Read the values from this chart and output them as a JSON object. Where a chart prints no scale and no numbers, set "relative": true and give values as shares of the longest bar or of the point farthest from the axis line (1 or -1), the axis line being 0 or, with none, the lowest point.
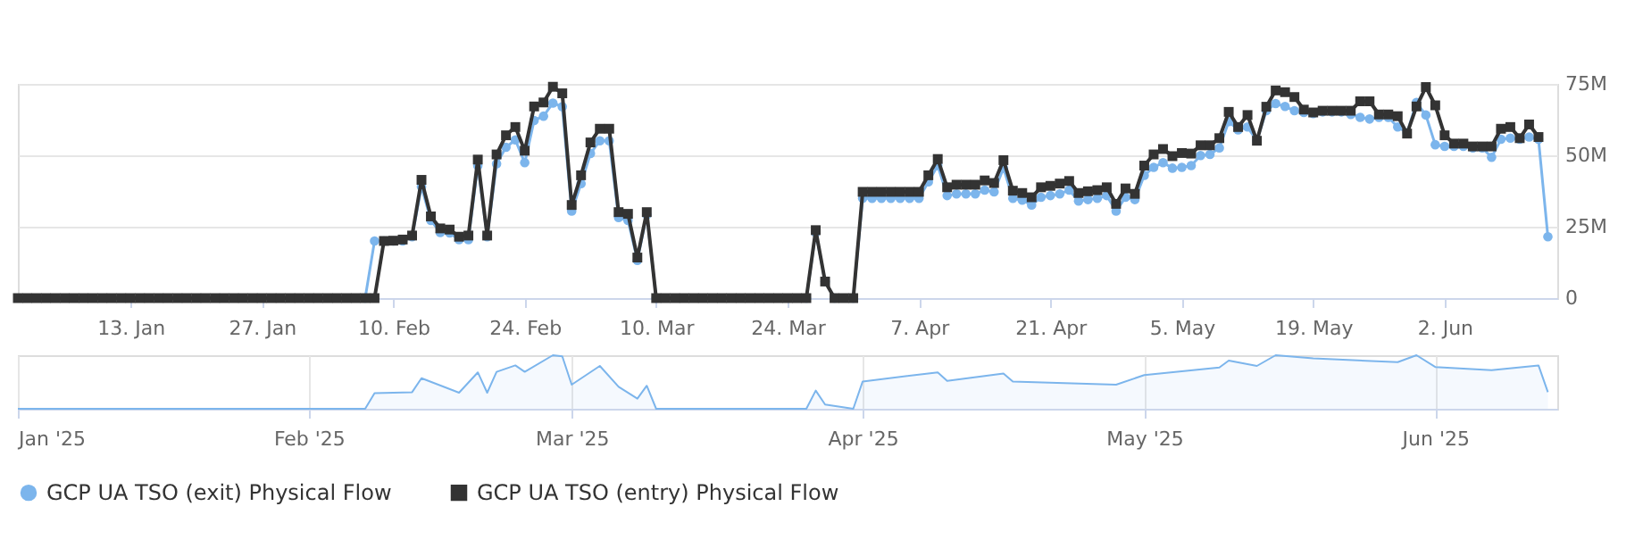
{
  "chart_data": [
    {
      "type": "line",
      "x": [
        "2025-01-01",
        "2025-01-02",
        "2025-01-03",
        "2025-01-04",
        "2025-01-05",
        "2025-01-06",
        "2025-01-07",
        "2025-01-08",
        "2025-01-09",
        "2025-01-10",
        "2025-01-11",
        "2025-01-12",
        "2025-01-13",
        "2025-01-14",
        "2025-01-15",
        "2025-01-16",
        "2025-01-17",
        "2025-01-18",
        "2025-01-19",
        "2025-01-20",
        "2025-01-21",
        "2025-01-22",
        "2025-01-23",
        "2025-01-24",
        "2025-01-25",
        "2025-01-26",
        "2025-01-27",
        "2025-01-28",
        "2025-01-29",
        "2025-01-30",
        "2025-01-31",
        "2025-02-01",
        "2025-02-02",
        "2025-02-03",
        "2025-02-04",
        "2025-02-05",
        "2025-02-06",
        "2025-02-07",
        "2025-02-08",
        "2025-02-09",
        "2025-02-10",
        "2025-02-11",
        "2025-02-12",
        "2025-02-13",
        "2025-02-14",
        "2025-02-15",
        "2025-02-16",
        "2025-02-17",
        "2025-02-18",
        "2025-02-19",
        "2025-02-20",
        "2025-02-21",
        "2025-02-22",
        "2025-02-23",
        "2025-02-24",
        "2025-02-25",
        "2025-02-26",
        "2025-02-27",
        "2025-02-28",
        "2025-03-01",
        "2025-03-02",
        "2025-03-03",
        "2025-03-04",
        "2025-03-05",
        "2025-03-06",
        "2025-03-07",
        "2025-03-08",
        "2025-03-09",
        "2025-03-10",
        "2025-03-11",
        "2025-03-12",
        "2025-03-13",
        "2025-03-14",
        "2025-03-15",
        "2025-03-16",
        "2025-03-17",
        "2025-03-18",
        "2025-03-19",
        "2025-03-20",
        "2025-03-21",
        "2025-03-22",
        "2025-03-23",
        "2025-03-24",
        "2025-03-25",
        "2025-03-26",
        "2025-03-27",
        "2025-03-28",
        "2025-03-29",
        "2025-03-30",
        "2025-03-31",
        "2025-04-01",
        "2025-04-02",
        "2025-04-03",
        "2025-04-04",
        "2025-04-05",
        "2025-04-06",
        "2025-04-07",
        "2025-04-08",
        "2025-04-09",
        "2025-04-10",
        "2025-04-11",
        "2025-04-12",
        "2025-04-13",
        "2025-04-14",
        "2025-04-15",
        "2025-04-16",
        "2025-04-17",
        "2025-04-18",
        "2025-04-19",
        "2025-04-20",
        "2025-04-21",
        "2025-04-22",
        "2025-04-23",
        "2025-04-24",
        "2025-04-25",
        "2025-04-26",
        "2025-04-27",
        "2025-04-28",
        "2025-04-29",
        "2025-04-30",
        "2025-05-01",
        "2025-05-02",
        "2025-05-03",
        "2025-05-04",
        "2025-05-05",
        "2025-05-06",
        "2025-05-07",
        "2025-05-08",
        "2025-05-09",
        "2025-05-10",
        "2025-05-11",
        "2025-05-12",
        "2025-05-13",
        "2025-05-14",
        "2025-05-15",
        "2025-05-16",
        "2025-05-17",
        "2025-05-18",
        "2025-05-19",
        "2025-05-20",
        "2025-05-21",
        "2025-05-22",
        "2025-05-23",
        "2025-05-24",
        "2025-05-25",
        "2025-05-26",
        "2025-05-27",
        "2025-05-28",
        "2025-05-29",
        "2025-05-30",
        "2025-05-31",
        "2025-06-01",
        "2025-06-02",
        "2025-06-03",
        "2025-06-04",
        "2025-06-05",
        "2025-06-06",
        "2025-06-07",
        "2025-06-08",
        "2025-06-09",
        "2025-06-10",
        "2025-06-11",
        "2025-06-12",
        "2025-06-13"
      ],
      "series": [
        {
          "name": "GCP UA TSO (exit) Physical Flow",
          "color": "#7cb5ec",
          "marker": "circle",
          "line_style": "solid",
          "values": [
            null,
            null,
            null,
            null,
            null,
            null,
            null,
            null,
            null,
            null,
            null,
            null,
            null,
            null,
            null,
            null,
            null,
            null,
            null,
            null,
            null,
            null,
            null,
            null,
            null,
            null,
            null,
            null,
            null,
            null,
            null,
            null,
            null,
            null,
            null,
            null,
            null,
            0,
            20,
            20,
            20,
            20,
            21.5,
            39,
            27.2,
            23,
            22.8,
            20.5,
            20.5,
            46.4,
            21.5,
            47,
            52.8,
            55.4,
            47.4,
            62.2,
            63.7,
            68.3,
            67,
            30.5,
            40.1,
            50.6,
            55.1,
            55.1,
            28.2,
            27.2,
            13.2,
            29.2,
            0,
            null,
            null,
            null,
            null,
            null,
            null,
            null,
            null,
            null,
            null,
            null,
            null,
            null,
            null,
            null,
            0,
            23,
            5.8,
            0,
            null,
            0,
            34.9,
            34.9,
            34.9,
            34.9,
            34.9,
            34.9,
            34.9,
            40.7,
            46.4,
            35.9,
            36.5,
            36.5,
            36.5,
            37.8,
            37.2,
            45.5,
            34.9,
            34.3,
            32.6,
            35.3,
            35.9,
            36.5,
            37.8,
            34,
            34.5,
            34.9,
            35.9,
            30.5,
            35.3,
            34.5,
            43,
            45.8,
            47.4,
            45.5,
            45.8,
            46.4,
            49.9,
            50.3,
            52.6,
            61.8,
            58.9,
            59.9,
            55.1,
            65.6,
            68.1,
            67.1,
            65.6,
            65,
            64.6,
            65.2,
            65.2,
            65.2,
            64.3,
            63.3,
            62.7,
            63.3,
            63.3,
            59.9,
            57.9,
            68.5,
            64.1,
            53.7,
            53.1,
            53.1,
            53.1,
            52.6,
            52.6,
            49.3,
            55.6,
            56,
            55.6,
            56.4,
            55.6,
            21.5
          ]
        },
        {
          "name": "GCP UA TSO (entry) Physical Flow",
          "color": "#333333",
          "marker": "square",
          "line_style": "solid",
          "values": [
            0,
            0,
            0,
            0,
            0,
            0,
            0,
            0,
            0,
            0,
            0,
            0,
            0,
            0,
            0,
            0,
            0,
            0,
            0,
            0,
            0,
            0,
            0,
            0,
            0,
            0,
            0,
            0,
            0,
            0,
            0,
            0,
            0,
            0,
            0,
            0,
            0,
            0,
            0,
            20,
            20.1,
            20.5,
            21.9,
            41.4,
            28.6,
            24.4,
            24,
            21.5,
            21.9,
            48.5,
            21.9,
            50.3,
            57,
            59.9,
            51.6,
            67.1,
            68.5,
            74,
            71.7,
            32.6,
            43,
            54.5,
            59.3,
            59.3,
            30.1,
            29.5,
            14.2,
            30.1,
            0,
            0,
            0,
            0,
            0,
            0,
            0,
            0,
            0,
            0,
            0,
            0,
            0,
            0,
            0,
            0,
            0,
            23.8,
            5.8,
            0,
            0,
            0,
            37.2,
            37.2,
            37.2,
            37.2,
            37.2,
            37.2,
            37.2,
            43,
            48.7,
            38.8,
            39.7,
            39.7,
            39.7,
            41.2,
            40.3,
            48.3,
            37.6,
            36.8,
            35.3,
            38.8,
            39.3,
            40.1,
            41,
            36.8,
            37.4,
            37.8,
            38.8,
            33,
            38.4,
            36.5,
            46.4,
            50.3,
            52.2,
            49.7,
            50.8,
            50.6,
            53.5,
            53.5,
            56,
            65.2,
            59.9,
            64.1,
            55.1,
            67,
            72.7,
            72.1,
            70.4,
            66,
            65,
            65.6,
            65.6,
            65.6,
            65.6,
            68.9,
            68.9,
            64.3,
            64.3,
            63.7,
            57.6,
            67.1,
            73.9,
            67.5,
            57,
            54.1,
            54.1,
            53.1,
            53.1,
            53.1,
            59.3,
            59.9,
            56,
            60.8,
            56.4,
            null
          ]
        }
      ],
      "xlim": [
        "2025-01-01",
        "2025-06-14"
      ],
      "xticks": [
        {
          "value": "2025-01-13",
          "label": "13. Jan"
        },
        {
          "value": "2025-01-27",
          "label": "27. Jan"
        },
        {
          "value": "2025-02-10",
          "label": "10. Feb"
        },
        {
          "value": "2025-02-24",
          "label": "24. Feb"
        },
        {
          "value": "2025-03-10",
          "label": "10. Mar"
        },
        {
          "value": "2025-03-24",
          "label": "24. Mar"
        },
        {
          "value": "2025-04-07",
          "label": "7. Apr"
        },
        {
          "value": "2025-04-21",
          "label": "21. Apr"
        },
        {
          "value": "2025-05-05",
          "label": "5. May"
        },
        {
          "value": "2025-05-19",
          "label": "19. May"
        },
        {
          "value": "2025-06-02",
          "label": "2. Jun"
        }
      ],
      "ylim": [
        0,
        75
      ],
      "yticks": [
        0,
        {
          "value": 25,
          "label": "25M"
        },
        {
          "value": 50,
          "label": "50M"
        },
        {
          "value": 75,
          "label": "75M"
        }
      ],
      "grid": "y",
      "legend": "bottom"
    },
    {
      "type": "area",
      "relative": true,
      "x": [
        "2025-01-01",
        "2025-02-07",
        "2025-02-08",
        "2025-02-12",
        "2025-02-13",
        "2025-02-17",
        "2025-02-19",
        "2025-02-20",
        "2025-02-21",
        "2025-02-23",
        "2025-02-24",
        "2025-02-27",
        "2025-02-28",
        "2025-03-01",
        "2025-03-04",
        "2025-03-06",
        "2025-03-08",
        "2025-03-09",
        "2025-03-10",
        "2025-03-26",
        "2025-03-27",
        "2025-03-28",
        "2025-03-31",
        "2025-04-01",
        "2025-04-09",
        "2025-04-10",
        "2025-04-16",
        "2025-04-17",
        "2025-04-28",
        "2025-05-01",
        "2025-05-09",
        "2025-05-10",
        "2025-05-13",
        "2025-05-15",
        "2025-05-19",
        "2025-05-28",
        "2025-05-30",
        "2025-06-01",
        "2025-06-07",
        "2025-06-12",
        "2025-06-13"
      ],
      "series": [
        {
          "color": "#7cb5ec",
          "values": [
            0,
            0,
            0.29,
            0.31,
            0.57,
            0.3,
            0.68,
            0.3,
            0.69,
            0.81,
            0.69,
            1,
            0.98,
            0.45,
            0.8,
            0.41,
            0.19,
            0.43,
            0,
            0,
            0.34,
            0.08,
            0,
            0.51,
            0.68,
            0.52,
            0.66,
            0.51,
            0.45,
            0.63,
            0.77,
            0.9,
            0.8,
            1,
            0.94,
            0.87,
            1,
            0.78,
            0.72,
            0.81,
            0.31
          ]
        }
      ],
      "xlim": [
        "2025-01-01",
        "2025-06-14"
      ],
      "xticks": [
        {
          "value": "2025-01-01",
          "label": "Jan '25"
        },
        {
          "value": "2025-02-01",
          "label": "Feb '25"
        },
        {
          "value": "2025-03-01",
          "label": "Mar '25"
        },
        {
          "value": "2025-04-01",
          "label": "Apr '25"
        },
        {
          "value": "2025-05-01",
          "label": "May '25"
        },
        {
          "value": "2025-06-01",
          "label": "Jun '25"
        }
      ],
      "grid": "x"
    }
  ]
}
